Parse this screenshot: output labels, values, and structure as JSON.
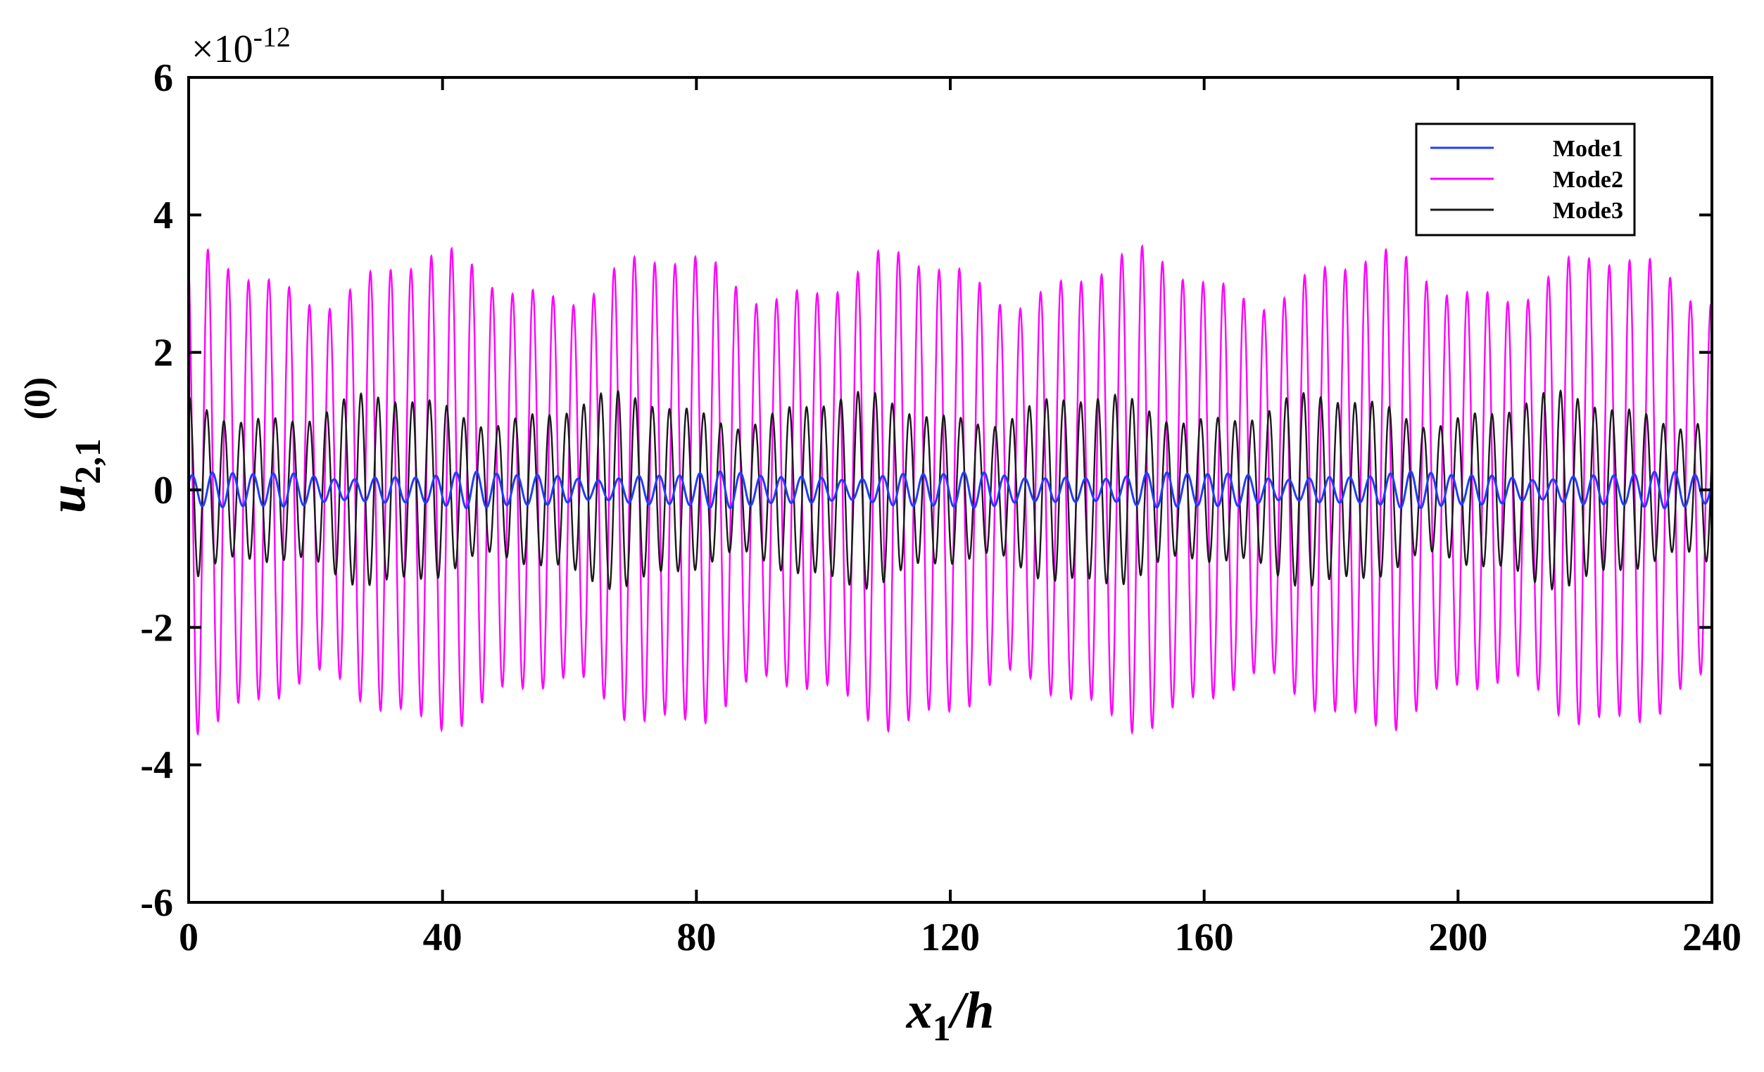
{
  "chart_data": {
    "type": "line",
    "xlabel": {
      "main": "x",
      "sub": "1",
      "rest": "/h"
    },
    "ylabel": {
      "main": "u",
      "sub": "2,1",
      "sup": "(0)"
    },
    "y_exponent": {
      "prefix": "×10",
      "power": "-12"
    },
    "xlim": [
      0,
      240
    ],
    "ylim": [
      -6,
      6
    ],
    "x_ticks": [
      "0",
      "40",
      "80",
      "120",
      "160",
      "200",
      "240"
    ],
    "y_ticks": [
      "-6",
      "-4",
      "-2",
      "0",
      "2",
      "4",
      "6"
    ],
    "legend_position": "top-right",
    "grid": false,
    "series": [
      {
        "name": "Mode1",
        "color": "#1f3cff",
        "period": 3.2,
        "amp_min": 0.14,
        "amp_max": 0.27,
        "phase": 0.5
      },
      {
        "name": "Mode2",
        "color": "#ff00ff",
        "period": 3.2,
        "amp_min": 2.6,
        "amp_max": 3.55,
        "phase": 1.9
      },
      {
        "name": "Mode3",
        "color": "#1a1a1a",
        "period": 2.7,
        "amp_min": 0.88,
        "amp_max": 1.45,
        "phase": 1.2
      }
    ],
    "note": ""
  }
}
